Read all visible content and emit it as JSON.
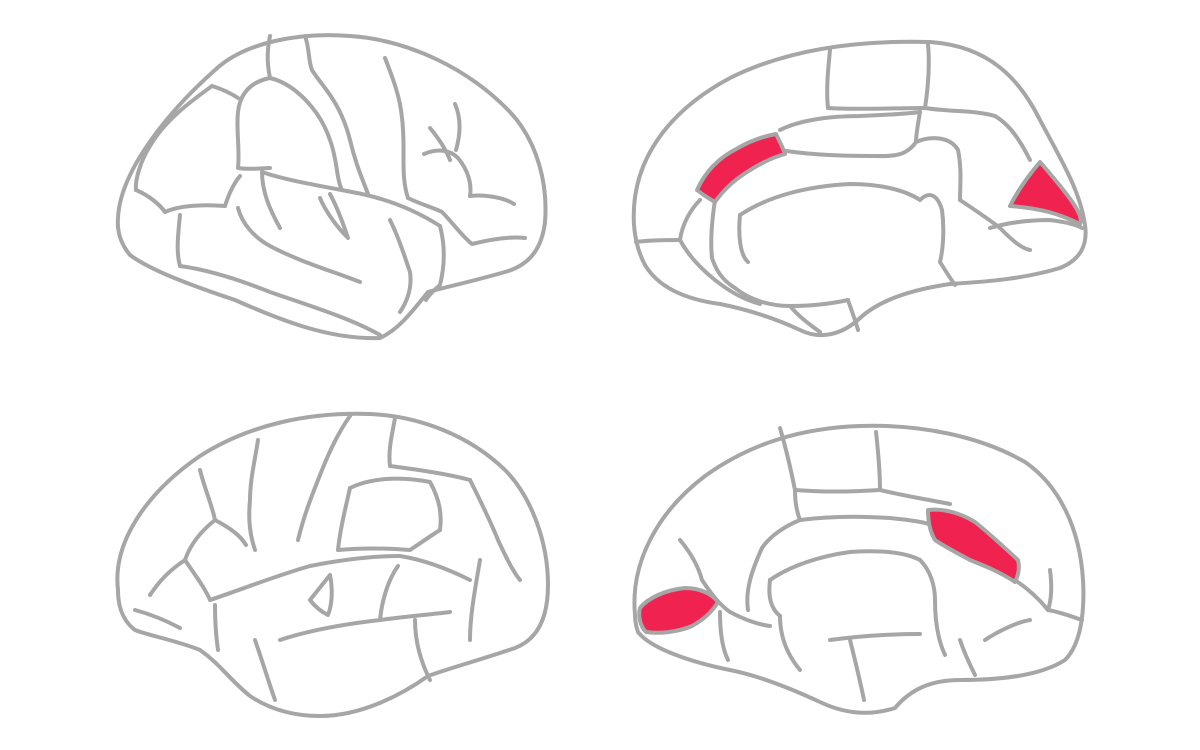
{
  "colors": {
    "background": "#ffffff",
    "outline": "#a6a6a6",
    "highlight": "#f0224f"
  },
  "views": [
    {
      "id": "left-hemisphere-lateral",
      "hemisphere": "left",
      "view": "lateral"
    },
    {
      "id": "right-hemisphere-medial",
      "hemisphere": "right",
      "view": "medial",
      "highlighted_regions": [
        "cingulate-region",
        "occipital-pole-region"
      ]
    },
    {
      "id": "right-hemisphere-lateral",
      "hemisphere": "right",
      "view": "lateral"
    },
    {
      "id": "left-hemisphere-medial",
      "hemisphere": "left",
      "view": "medial",
      "highlighted_regions": [
        "cingulate-region",
        "occipital-pole-region"
      ]
    }
  ]
}
